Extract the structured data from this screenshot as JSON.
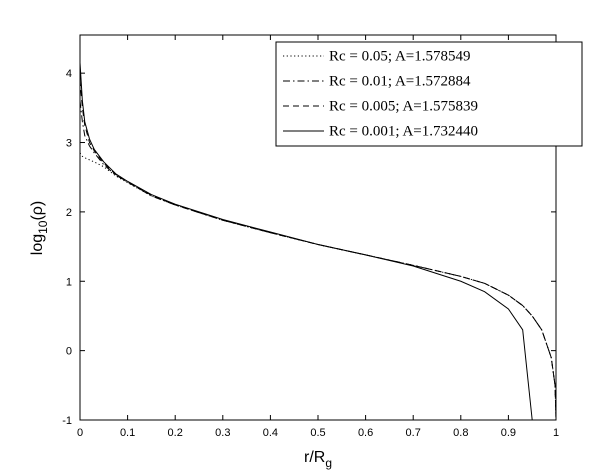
{
  "chart_data": {
    "type": "line",
    "xlabel": [
      "r/R",
      "g"
    ],
    "ylabel": [
      "log",
      "10",
      "(ρ)"
    ],
    "x": [
      0,
      0.005,
      0.01,
      0.02,
      0.03,
      0.05,
      0.075,
      0.1,
      0.15,
      0.2,
      0.3,
      0.4,
      0.5,
      0.6,
      0.7,
      0.8,
      0.85,
      0.9,
      0.93,
      0.95,
      0.97,
      0.99,
      0.998,
      1
    ],
    "series": [
      {
        "name": "Rc = 0.05; A=1.578549",
        "color": "#000000",
        "dash": "dotted",
        "values": [
          2.85,
          2.8,
          2.78,
          2.75,
          2.72,
          2.65,
          2.52,
          2.42,
          2.23,
          2.1,
          1.88,
          1.7,
          1.53,
          1.38,
          1.23,
          1.07,
          0.97,
          0.8,
          0.65,
          0.5,
          0.3,
          -0.1,
          -0.5,
          -1
        ]
      },
      {
        "name": "Rc = 0.01; A=1.572884",
        "color": "#000000",
        "dash": "dashdot",
        "values": [
          3.6,
          3.3,
          3.1,
          2.95,
          2.85,
          2.68,
          2.53,
          2.43,
          2.23,
          2.1,
          1.88,
          1.7,
          1.53,
          1.38,
          1.23,
          1.07,
          0.97,
          0.8,
          0.65,
          0.5,
          0.3,
          -0.1,
          -0.5,
          -1
        ]
      },
      {
        "name": "Rc = 0.005; A=1.575839",
        "color": "#000000",
        "dash": "dashed",
        "values": [
          3.9,
          3.5,
          3.25,
          3.0,
          2.88,
          2.7,
          2.54,
          2.43,
          2.24,
          2.1,
          1.88,
          1.7,
          1.53,
          1.38,
          1.23,
          1.07,
          0.97,
          0.8,
          0.65,
          0.5,
          0.3,
          -0.1,
          -0.5,
          -1
        ]
      },
      {
        "name": "Rc = 0.001; A=1.732440",
        "color": "#000000",
        "dash": "solid",
        "values": [
          4.15,
          3.6,
          3.3,
          3.05,
          2.9,
          2.72,
          2.55,
          2.44,
          2.25,
          2.11,
          1.89,
          1.71,
          1.53,
          1.38,
          1.22,
          1.0,
          0.85,
          0.6,
          0.3,
          -1,
          null,
          null,
          null,
          null
        ]
      }
    ],
    "xlim": [
      0,
      1
    ],
    "xticks": [
      0,
      0.1,
      0.2,
      0.3,
      0.4,
      0.5,
      0.6,
      0.7,
      0.8,
      0.9,
      1
    ],
    "ylim": [
      -1,
      4.55
    ],
    "yticks": [
      -1,
      0,
      1,
      2,
      3,
      4
    ],
    "grid": false,
    "legend": "top-right"
  }
}
